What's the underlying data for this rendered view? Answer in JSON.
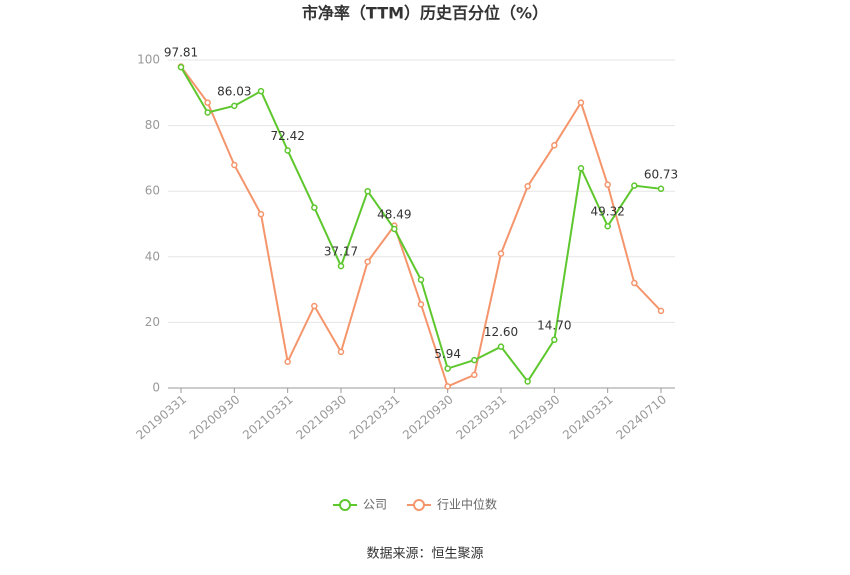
{
  "chart_data": {
    "type": "line",
    "title": "市净率（TTM）历史百分位（%）",
    "categories": [
      "20190331",
      null,
      "20200930",
      null,
      "20210331",
      null,
      "20210930",
      null,
      "20220331",
      null,
      "20220930",
      null,
      "20230331",
      null,
      "20230930",
      null,
      "20240331",
      null,
      "20240710"
    ],
    "series": [
      {
        "name": "公司",
        "color": "#5ec72e",
        "values": [
          97.81,
          84,
          86.03,
          90.5,
          72.42,
          55,
          37.17,
          60,
          48.49,
          33,
          5.94,
          8.5,
          12.6,
          2,
          14.7,
          67,
          49.32,
          61.7,
          60.73
        ],
        "value_labels": [
          "97.81",
          null,
          "86.03",
          null,
          "72.42",
          null,
          "37.17",
          null,
          "48.49",
          null,
          "5.94",
          null,
          "12.60",
          null,
          "14.70",
          null,
          "49.32",
          null,
          "60.73"
        ]
      },
      {
        "name": "行业中位数",
        "color": "#f5956c",
        "values": [
          98,
          87,
          68,
          53,
          8,
          25,
          11,
          38.5,
          49.5,
          25.5,
          0.5,
          4,
          41,
          61.5,
          74,
          87,
          62,
          32,
          23.5
        ]
      }
    ],
    "ylim": [
      0,
      100
    ],
    "yticks": [
      0,
      20,
      40,
      60,
      80,
      100
    ],
    "grid": true,
    "source": "数据来源：恒生聚源"
  }
}
